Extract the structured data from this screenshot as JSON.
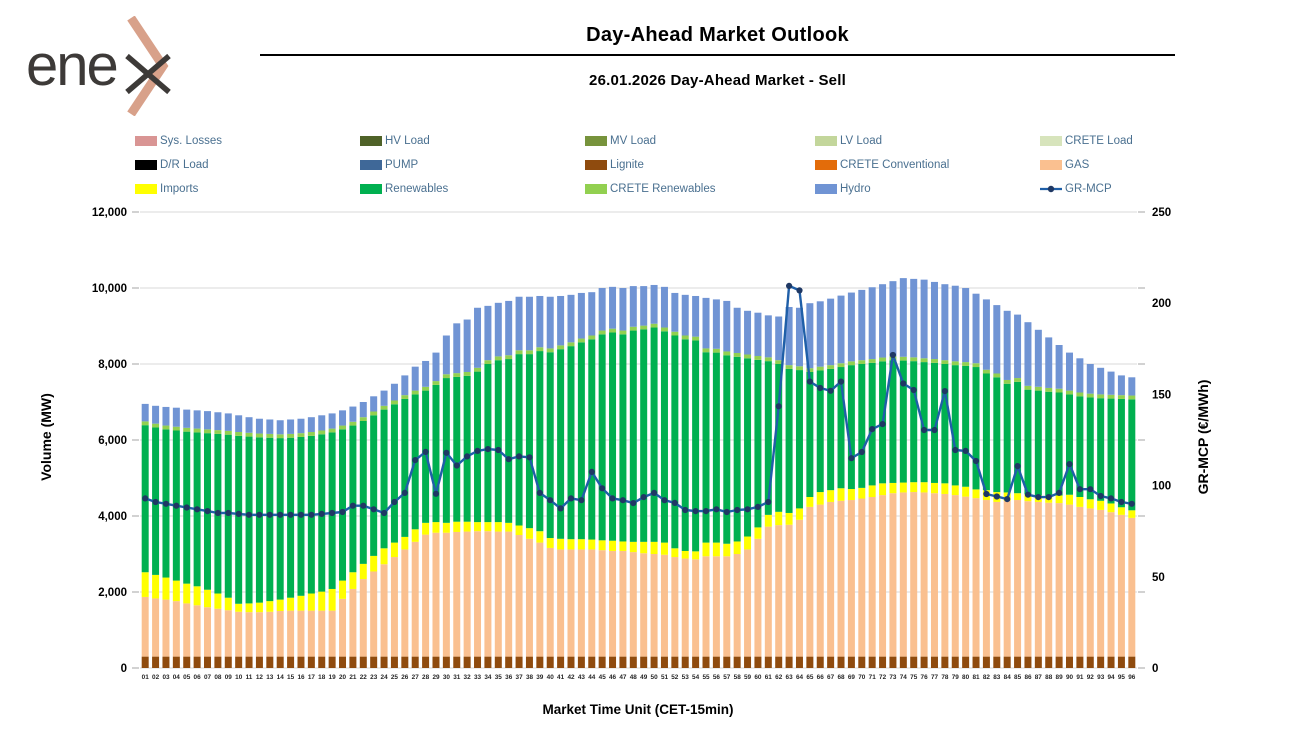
{
  "header": {
    "logo_text": "ene",
    "logo_name": "enex",
    "title": "Day-Ahead Market Outlook",
    "subtitle": "26.01.2026  Day-Ahead Market - Sell"
  },
  "colors": {
    "legend_text": "#4a7090",
    "gridline": "#d9d9d9",
    "tick_mark": "#bfbfbf",
    "x_label": "#262626",
    "logo_chevron": "#d8a18a",
    "logo_dark": "#3d3a38"
  },
  "legend": {
    "items": [
      {
        "label": "Sys. Losses",
        "color": "#d99594",
        "type": "box"
      },
      {
        "label": "HV Load",
        "color": "#4f6228",
        "type": "box"
      },
      {
        "label": "MV Load",
        "color": "#77933c",
        "type": "box"
      },
      {
        "label": "LV Load",
        "color": "#c3d69b",
        "type": "box"
      },
      {
        "label": "CRETE Load",
        "color": "#d7e4bc",
        "type": "box"
      },
      {
        "label": "D/R Load",
        "color": "#000000",
        "type": "box"
      },
      {
        "label": "PUMP",
        "color": "#3f6898",
        "type": "box"
      },
      {
        "label": "Lignite",
        "color": "#8f4b0e",
        "type": "box"
      },
      {
        "label": "CRETE Conventional",
        "color": "#e36c0a",
        "type": "box"
      },
      {
        "label": "GAS",
        "color": "#fac090",
        "type": "box"
      },
      {
        "label": "Imports",
        "color": "#ffff00",
        "type": "box"
      },
      {
        "label": "Renewables",
        "color": "#00b050",
        "type": "box"
      },
      {
        "label": "CRETE Renewables",
        "color": "#92d050",
        "type": "box"
      },
      {
        "label": "Hydro",
        "color": "#7094d4",
        "type": "box"
      },
      {
        "label": "GR-MCP",
        "color": "#1f5fa8",
        "marker_color": "#1f3864",
        "type": "line"
      }
    ]
  },
  "axes": {
    "y_left": {
      "title": "Volume (MW)",
      "ticks": [
        "0",
        "2,000",
        "4,000",
        "6,000",
        "8,000",
        "10,000",
        "12,000"
      ]
    },
    "y_right": {
      "title": "GR-MCP (€/MWh)",
      "ticks": [
        "0",
        "50",
        "100",
        "150",
        "200",
        "250"
      ]
    },
    "x": {
      "title": "Market Time Unit (CET-15min)"
    }
  },
  "chart_data": {
    "type": "stacked-bar+line",
    "title": "26.01.2026  Day-Ahead Market - Sell",
    "ylim_left": [
      0,
      12000
    ],
    "ylim_right": [
      0,
      250
    ],
    "grid": true,
    "legend_position": "top",
    "categories": [
      "01",
      "02",
      "03",
      "04",
      "05",
      "06",
      "07",
      "08",
      "09",
      "10",
      "11",
      "12",
      "13",
      "14",
      "15",
      "16",
      "17",
      "18",
      "19",
      "20",
      "21",
      "22",
      "23",
      "24",
      "25",
      "26",
      "27",
      "28",
      "29",
      "30",
      "31",
      "32",
      "33",
      "34",
      "35",
      "36",
      "37",
      "38",
      "39",
      "40",
      "41",
      "42",
      "43",
      "44",
      "45",
      "46",
      "47",
      "48",
      "49",
      "50",
      "51",
      "52",
      "53",
      "54",
      "55",
      "56",
      "57",
      "58",
      "59",
      "60",
      "61",
      "62",
      "63",
      "64",
      "65",
      "66",
      "67",
      "68",
      "69",
      "70",
      "71",
      "72",
      "73",
      "74",
      "75",
      "76",
      "77",
      "78",
      "79",
      "80",
      "81",
      "82",
      "83",
      "84",
      "85",
      "86",
      "87",
      "88",
      "89",
      "90",
      "91",
      "92",
      "93",
      "94",
      "95",
      "96"
    ],
    "zero_series": [
      "Sys. Losses",
      "HV Load",
      "MV Load",
      "LV Load",
      "CRETE Load",
      "D/R Load",
      "PUMP",
      "CRETE Conventional"
    ],
    "series": [
      {
        "name": "Lignite",
        "color": "#8f4b0e",
        "constant": 300
      },
      {
        "name": "GAS",
        "color": "#fac090",
        "values": [
          1570,
          1530,
          1500,
          1460,
          1400,
          1350,
          1300,
          1260,
          1220,
          1180,
          1170,
          1170,
          1180,
          1200,
          1210,
          1210,
          1210,
          1210,
          1210,
          1520,
          1780,
          2040,
          2240,
          2430,
          2620,
          2820,
          3020,
          3210,
          3260,
          3260,
          3280,
          3290,
          3300,
          3300,
          3290,
          3290,
          3200,
          3100,
          3000,
          2860,
          2820,
          2820,
          2820,
          2820,
          2800,
          2780,
          2780,
          2750,
          2720,
          2700,
          2680,
          2620,
          2580,
          2560,
          2640,
          2640,
          2640,
          2700,
          2820,
          3100,
          3420,
          3460,
          3470,
          3600,
          3940,
          4000,
          4070,
          4100,
          4120,
          4160,
          4200,
          4250,
          4300,
          4320,
          4330,
          4320,
          4300,
          4280,
          4250,
          4210,
          4170,
          4120,
          4070,
          4100,
          4120,
          4090,
          4070,
          4050,
          4040,
          4000,
          3940,
          3900,
          3860,
          3800,
          3730,
          3650
        ]
      },
      {
        "name": "Imports",
        "color": "#ffff00",
        "values": [
          650,
          620,
          580,
          540,
          520,
          500,
          460,
          400,
          330,
          210,
          230,
          250,
          280,
          300,
          340,
          390,
          450,
          500,
          570,
          480,
          440,
          400,
          410,
          420,
          380,
          330,
          330,
          310,
          280,
          260,
          270,
          260,
          240,
          240,
          250,
          230,
          250,
          280,
          300,
          260,
          280,
          270,
          270,
          260,
          260,
          270,
          250,
          270,
          300,
          320,
          320,
          230,
          200,
          210,
          360,
          360,
          330,
          330,
          340,
          300,
          310,
          350,
          310,
          300,
          260,
          330,
          310,
          330,
          290,
          280,
          305,
          310,
          270,
          260,
          260,
          270,
          270,
          280,
          255,
          260,
          230,
          260,
          260,
          220,
          180,
          180,
          170,
          180,
          200,
          260,
          260,
          240,
          240,
          230,
          200,
          200
        ]
      },
      {
        "name": "Renewables",
        "color": "#00b050",
        "values": [
          3870,
          3880,
          3900,
          3950,
          4000,
          4050,
          4120,
          4200,
          4290,
          4420,
          4390,
          4350,
          4300,
          4250,
          4210,
          4180,
          4150,
          4140,
          4120,
          3980,
          3860,
          3760,
          3700,
          3650,
          3640,
          3630,
          3550,
          3480,
          3610,
          3810,
          3810,
          3840,
          3960,
          4160,
          4260,
          4310,
          4510,
          4580,
          4740,
          4890,
          4990,
          5080,
          5180,
          5270,
          5420,
          5480,
          5450,
          5560,
          5590,
          5640,
          5560,
          5600,
          5570,
          5550,
          5010,
          5000,
          4960,
          4860,
          4690,
          4410,
          4045,
          3890,
          3790,
          3640,
          3290,
          3200,
          3190,
          3190,
          3260,
          3260,
          3225,
          3210,
          3230,
          3210,
          3185,
          3160,
          3160,
          3140,
          3165,
          3180,
          3220,
          3070,
          3020,
          2860,
          2930,
          2755,
          2760,
          2740,
          2710,
          2640,
          2650,
          2680,
          2700,
          2760,
          2850,
          2920
        ]
      },
      {
        "name": "CRETE Renewables",
        "color": "#92d050",
        "constant": 100
      },
      {
        "name": "Hydro",
        "color": "#7094d4",
        "values": [
          460,
          470,
          490,
          500,
          480,
          480,
          480,
          470,
          460,
          440,
          410,
          390,
          380,
          370,
          380,
          380,
          390,
          400,
          400,
          400,
          400,
          400,
          400,
          400,
          440,
          520,
          630,
          680,
          750,
          1020,
          1310,
          1380,
          1580,
          1430,
          1410,
          1430,
          1410,
          1410,
          1350,
          1360,
          1300,
          1250,
          1200,
          1140,
          1120,
          1100,
          1120,
          1070,
          1040,
          1020,
          1070,
          1020,
          1070,
          1070,
          1330,
          1300,
          1330,
          1190,
          1150,
          1140,
          1105,
          1150,
          1530,
          1540,
          1710,
          1720,
          1750,
          1780,
          1810,
          1850,
          1890,
          1930,
          1980,
          2070,
          2065,
          2070,
          2030,
          2000,
          1990,
          1950,
          1830,
          1850,
          1800,
          1820,
          1670,
          1675,
          1500,
          1330,
          1150,
          1000,
          900,
          780,
          700,
          610,
          520,
          480
        ]
      }
    ],
    "line_series": {
      "name": "GR-MCP",
      "axis": "right",
      "color": "#1f5fa8",
      "marker_color": "#1f3864",
      "values": [
        93,
        91,
        90,
        89,
        88,
        87,
        86,
        85,
        85,
        84.5,
        84,
        84,
        84,
        84,
        84,
        84,
        84,
        84.5,
        85,
        85.5,
        89,
        89,
        87,
        85,
        91,
        96,
        114,
        118.5,
        95.5,
        118,
        111,
        116,
        119,
        120,
        119.5,
        114.5,
        116,
        115.5,
        96,
        92,
        87.5,
        93,
        92,
        107.5,
        98.5,
        93,
        92,
        90.4,
        93.7,
        96,
        92,
        90.5,
        86.6,
        86,
        86,
        87,
        85.5,
        86.6,
        87,
        88.3,
        91,
        143.5,
        209.5,
        207,
        157,
        153.5,
        152,
        157,
        115,
        118.4,
        131,
        133.7,
        171.6,
        156,
        152.4,
        130.5,
        130.5,
        151.8,
        119.5,
        119,
        113.5,
        95.4,
        94,
        92.6,
        110.7,
        95,
        93.7,
        93.7,
        96,
        111.8,
        98,
        98,
        94.3,
        93,
        91,
        90
      ]
    }
  }
}
